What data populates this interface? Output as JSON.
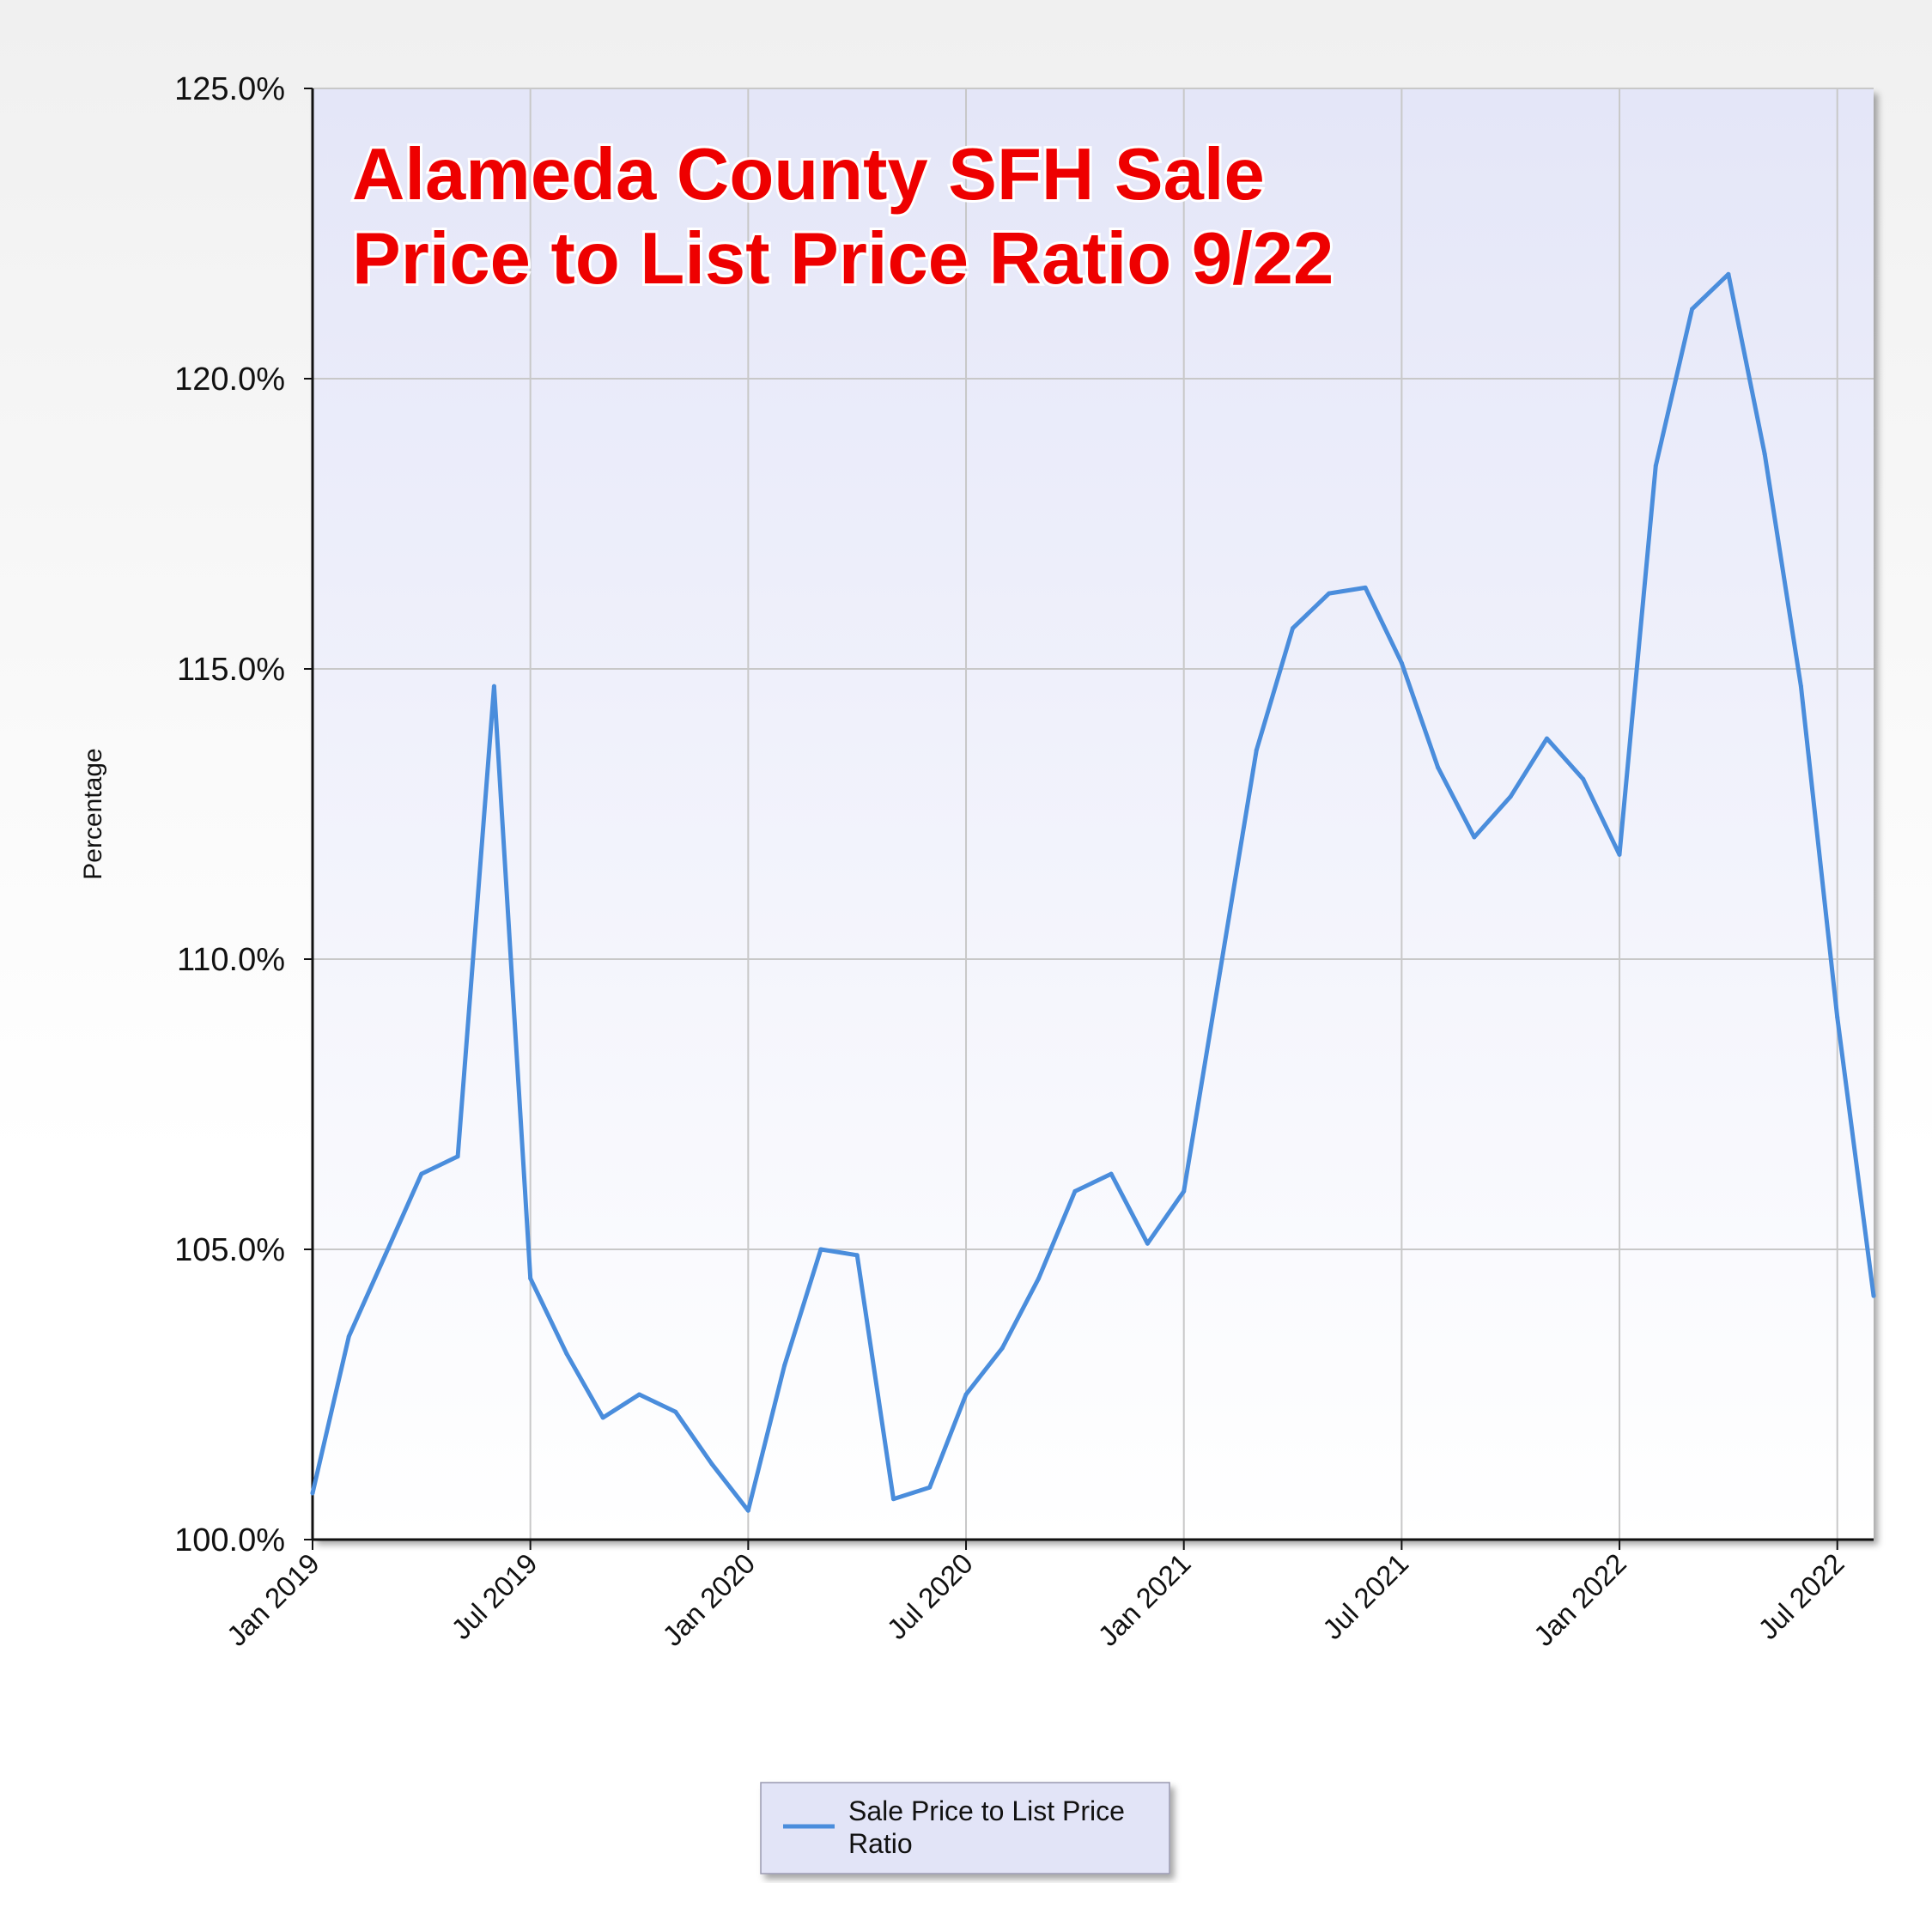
{
  "chart_data": {
    "type": "line",
    "title_lines": [
      "Alameda County SFH Sale",
      "Price to List Price Ratio 9/22"
    ],
    "ylabel": "Percentage",
    "xlabel": "",
    "ylim": [
      100,
      125
    ],
    "yticks": [
      {
        "value": 100,
        "label": "100.0%"
      },
      {
        "value": 105,
        "label": "105.0%"
      },
      {
        "value": 110,
        "label": "110.0%"
      },
      {
        "value": 115,
        "label": "115.0%"
      },
      {
        "value": 120,
        "label": "120.0%"
      },
      {
        "value": 125,
        "label": "125.0%"
      }
    ],
    "xlim": [
      "2019-01",
      "2022-08"
    ],
    "xticks": [
      {
        "value": "2019-01",
        "label": "Jan 2019"
      },
      {
        "value": "2019-07",
        "label": "Jul 2019"
      },
      {
        "value": "2020-01",
        "label": "Jan 2020"
      },
      {
        "value": "2020-07",
        "label": "Jul 2020"
      },
      {
        "value": "2021-01",
        "label": "Jan 2021"
      },
      {
        "value": "2021-07",
        "label": "Jul 2021"
      },
      {
        "value": "2022-01",
        "label": "Jan 2022"
      },
      {
        "value": "2022-07",
        "label": "Jul 2022"
      }
    ],
    "grid": true,
    "legend_position": "bottom-center",
    "series": [
      {
        "name": "Sale Price to List Price Ratio",
        "legend_lines": [
          "Sale Price to List Price",
          "Ratio"
        ],
        "color": "#4a8ddc",
        "x": [
          "2019-01",
          "2019-02",
          "2019-03",
          "2019-04",
          "2019-05",
          "2019-06",
          "2019-07",
          "2019-08",
          "2019-09",
          "2019-10",
          "2019-11",
          "2019-12",
          "2020-01",
          "2020-02",
          "2020-03",
          "2020-04",
          "2020-05",
          "2020-06",
          "2020-07",
          "2020-08",
          "2020-09",
          "2020-10",
          "2020-11",
          "2020-12",
          "2021-01",
          "2021-02",
          "2021-03",
          "2021-04",
          "2021-05",
          "2021-06",
          "2021-07",
          "2021-08",
          "2021-09",
          "2021-10",
          "2021-11",
          "2021-12",
          "2022-01",
          "2022-02",
          "2022-03",
          "2022-04",
          "2022-05",
          "2022-06",
          "2022-07",
          "2022-08"
        ],
        "values": [
          100.8,
          103.5,
          104.9,
          106.3,
          106.6,
          114.7,
          104.5,
          103.2,
          102.1,
          102.5,
          102.2,
          101.3,
          100.5,
          103.0,
          105.0,
          104.9,
          100.7,
          100.9,
          102.5,
          103.3,
          104.5,
          106.0,
          106.3,
          105.1,
          106.0,
          109.8,
          113.6,
          115.7,
          116.3,
          116.4,
          115.1,
          113.3,
          112.1,
          112.8,
          113.8,
          113.1,
          111.8,
          118.5,
          121.2,
          121.8,
          118.7,
          114.7,
          109.0,
          104.2
        ]
      }
    ]
  }
}
